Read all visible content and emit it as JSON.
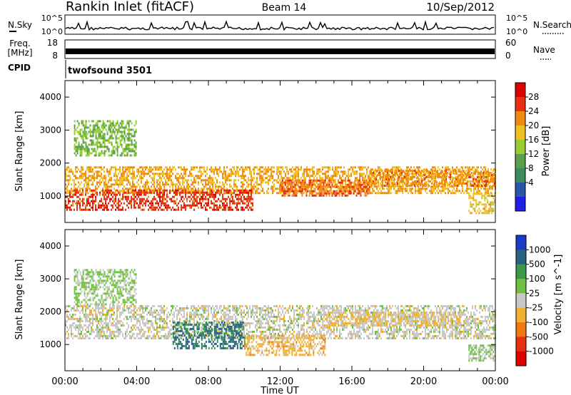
{
  "header": {
    "station": "Rankin Inlet (fitACF)",
    "beam": "Beam 14",
    "date": "10/Sep/2012"
  },
  "noise_panel": {
    "left_label": "N.Sky",
    "right_label": "N.Search",
    "tick_top": "10^5",
    "tick_bottom": "10^0"
  },
  "freq_panel": {
    "left_label_1": "Freq.",
    "left_label_2": "[MHz]",
    "right_label": "Nave",
    "left_ticks": [
      "18",
      "8"
    ],
    "right_ticks": [
      "60",
      "0"
    ]
  },
  "cpid": {
    "label": "CPID",
    "value": "twofsound 3501"
  },
  "time_axis": {
    "label": "Time UT",
    "ticks": [
      "00:00",
      "04:00",
      "08:00",
      "12:00",
      "16:00",
      "20:00",
      "00:00"
    ]
  },
  "chart_data": [
    {
      "type": "heatmap",
      "panel": "power",
      "ylabel": "Slant Range [km]",
      "ylim": [
        200,
        4500
      ],
      "yticks": [
        "4000",
        "3000",
        "2000",
        "1000"
      ],
      "xlim_hours": [
        0,
        24
      ],
      "colorbar": {
        "label": "Power [dB]",
        "ticks": [
          "28",
          "24",
          "20",
          "16",
          "12",
          "8",
          "4"
        ],
        "colors": [
          "#1e1ee6",
          "#2a55a8",
          "#3e8a5e",
          "#5aa04a",
          "#9acd32",
          "#f0c020",
          "#f08a10",
          "#e83010",
          "#dd0000"
        ]
      },
      "echo_regions_dB": [
        {
          "t": [
            0.0,
            24.0
          ],
          "r": [
            1100,
            1900
          ],
          "power": 22
        },
        {
          "t": [
            0.0,
            10.5
          ],
          "r": [
            600,
            1200
          ],
          "power": 28
        },
        {
          "t": [
            12.0,
            17.0
          ],
          "r": [
            1000,
            1500
          ],
          "power": 26
        },
        {
          "t": [
            17.0,
            24.0
          ],
          "r": [
            1300,
            1800
          ],
          "power": 24
        },
        {
          "t": [
            0.5,
            4.0
          ],
          "r": [
            2200,
            3300
          ],
          "power": 14
        },
        {
          "t": [
            22.5,
            24.0
          ],
          "r": [
            500,
            1100
          ],
          "power": 20
        }
      ]
    },
    {
      "type": "heatmap",
      "panel": "velocity",
      "ylabel": "Slant Range [km]",
      "ylim": [
        200,
        4500
      ],
      "yticks": [
        "4000",
        "3000",
        "2000",
        "1000"
      ],
      "xlim_hours": [
        0,
        24
      ],
      "colorbar": {
        "label": "Velocity [m s^-1]",
        "ticks": [
          "1000",
          "500",
          "100",
          "25",
          "-25",
          "-100",
          "-500",
          "-1000"
        ],
        "colors": [
          "#1a3cc8",
          "#2a6080",
          "#3a9a4a",
          "#70c040",
          "#c8c8c8",
          "#f0b030",
          "#f07810",
          "#e83010",
          "#e00000"
        ]
      },
      "echo_regions_mps": [
        {
          "t": [
            0.0,
            24.0
          ],
          "r": [
            1200,
            2200
          ],
          "velocity": 0
        },
        {
          "t": [
            6.0,
            10.0
          ],
          "r": [
            900,
            1700
          ],
          "velocity": 800
        },
        {
          "t": [
            10.0,
            14.5
          ],
          "r": [
            700,
            1300
          ],
          "velocity": -300
        },
        {
          "t": [
            14.5,
            22.0
          ],
          "r": [
            1600,
            2000
          ],
          "velocity": -200
        },
        {
          "t": [
            0.5,
            4.0
          ],
          "r": [
            2200,
            3300
          ],
          "velocity": 200
        },
        {
          "t": [
            22.5,
            24.0
          ],
          "r": [
            500,
            1000
          ],
          "velocity": 150
        }
      ]
    }
  ]
}
